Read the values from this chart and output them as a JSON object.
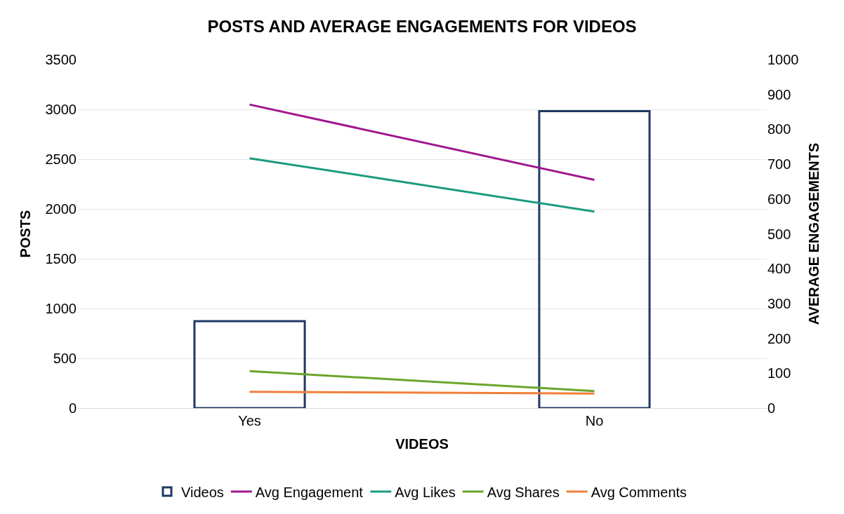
{
  "chart_data": {
    "type": "bar",
    "title": "POSTS AND AVERAGE ENGAGEMENTS FOR VIDEOS",
    "xlabel": "VIDEOS",
    "ylabel": "POSTS",
    "y2label": "AVERAGE ENGAGEMENTS",
    "categories": [
      "Yes",
      "No"
    ],
    "series": [
      {
        "name": "Videos",
        "color": "#1f3864",
        "values": [
          873,
          2982
        ]
      },
      {
        "name": "Avg Engagement",
        "type": "line",
        "axis": "y2",
        "color": "#a0168f",
        "values": [
          871,
          655
        ]
      },
      {
        "name": "Avg Likes",
        "type": "line",
        "axis": "y2",
        "color": "#1a9a80",
        "values": [
          717,
          564
        ]
      },
      {
        "name": "Avg Shares",
        "type": "line",
        "axis": "y2",
        "color": "#6aa52a",
        "values": [
          106,
          49
        ]
      },
      {
        "name": "Avg Comments",
        "type": "line",
        "axis": "y2",
        "color": "#f07f3a",
        "values": [
          47,
          42
        ]
      }
    ],
    "ylim": [
      0,
      3500
    ],
    "yticks": [
      0,
      500,
      1000,
      1500,
      2000,
      2500,
      3000,
      3500
    ],
    "y2lim": [
      0,
      1000
    ],
    "y2ticks": [
      0,
      100,
      200,
      300,
      400,
      500,
      600,
      700,
      800,
      900,
      1000
    ],
    "grid": "y",
    "legend": "bottom"
  }
}
